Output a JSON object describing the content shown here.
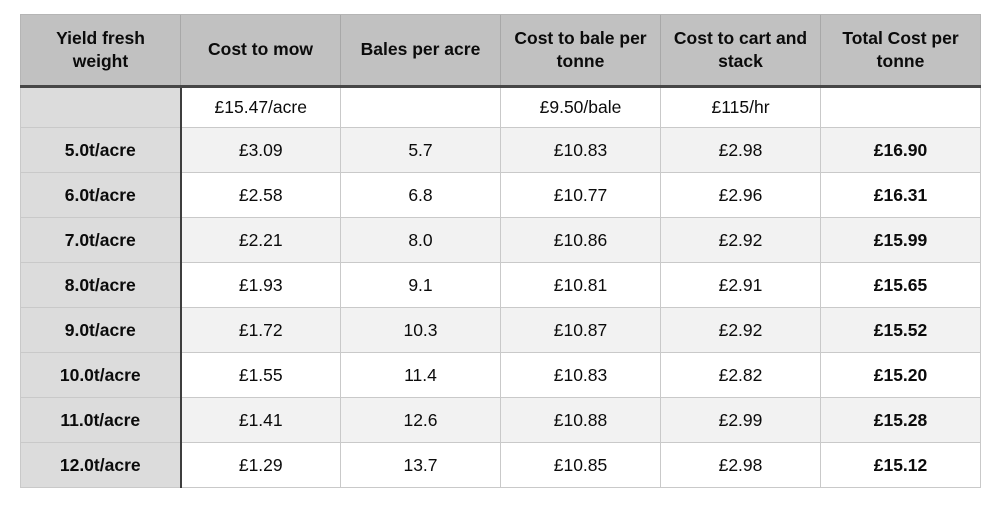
{
  "table": {
    "headers": [
      "Yield fresh weight",
      "Cost to mow",
      "Bales per acre",
      "Cost to bale per tonne",
      "Cost to cart and stack",
      "Total Cost per tonne"
    ],
    "rates": [
      "",
      "£15.47/acre",
      "",
      "£9.50/bale",
      "£115/hr",
      ""
    ],
    "rows": [
      [
        "5.0t/acre",
        "£3.09",
        "5.7",
        "£10.83",
        "£2.98",
        "£16.90"
      ],
      [
        "6.0t/acre",
        "£2.58",
        "6.8",
        "£10.77",
        "£2.96",
        "£16.31"
      ],
      [
        "7.0t/acre",
        "£2.21",
        "8.0",
        "£10.86",
        "£2.92",
        "£15.99"
      ],
      [
        "8.0t/acre",
        "£1.93",
        "9.1",
        "£10.81",
        "£2.91",
        "£15.65"
      ],
      [
        "9.0t/acre",
        "£1.72",
        "10.3",
        "£10.87",
        "£2.92",
        "£15.52"
      ],
      [
        "10.0t/acre",
        "£1.55",
        "11.4",
        "£10.83",
        "£2.82",
        "£15.20"
      ],
      [
        "11.0t/acre",
        "£1.41",
        "12.6",
        "£10.88",
        "£2.99",
        "£15.28"
      ],
      [
        "12.0t/acre",
        "£1.29",
        "13.7",
        "£10.85",
        "£2.98",
        "£15.12"
      ]
    ]
  },
  "chart_data": {
    "type": "table",
    "title": "",
    "columns": [
      "Yield fresh weight",
      "Cost to mow",
      "Bales per acre",
      "Cost to bale per tonne",
      "Cost to cart and stack",
      "Total Cost per tonne"
    ],
    "unit_rates_row": [
      "",
      "£15.47/acre",
      "",
      "£9.50/bale",
      "£115/hr",
      ""
    ],
    "rows": [
      {
        "yield_fresh_weight": "5.0t/acre",
        "cost_to_mow": 3.09,
        "bales_per_acre": 5.7,
        "cost_to_bale_per_tonne": 10.83,
        "cost_to_cart_and_stack": 2.98,
        "total_cost_per_tonne": 16.9
      },
      {
        "yield_fresh_weight": "6.0t/acre",
        "cost_to_mow": 2.58,
        "bales_per_acre": 6.8,
        "cost_to_bale_per_tonne": 10.77,
        "cost_to_cart_and_stack": 2.96,
        "total_cost_per_tonne": 16.31
      },
      {
        "yield_fresh_weight": "7.0t/acre",
        "cost_to_mow": 2.21,
        "bales_per_acre": 8.0,
        "cost_to_bale_per_tonne": 10.86,
        "cost_to_cart_and_stack": 2.92,
        "total_cost_per_tonne": 15.99
      },
      {
        "yield_fresh_weight": "8.0t/acre",
        "cost_to_mow": 1.93,
        "bales_per_acre": 9.1,
        "cost_to_bale_per_tonne": 10.81,
        "cost_to_cart_and_stack": 2.91,
        "total_cost_per_tonne": 15.65
      },
      {
        "yield_fresh_weight": "9.0t/acre",
        "cost_to_mow": 1.72,
        "bales_per_acre": 10.3,
        "cost_to_bale_per_tonne": 10.87,
        "cost_to_cart_and_stack": 2.92,
        "total_cost_per_tonne": 15.52
      },
      {
        "yield_fresh_weight": "10.0t/acre",
        "cost_to_mow": 1.55,
        "bales_per_acre": 11.4,
        "cost_to_bale_per_tonne": 10.83,
        "cost_to_cart_and_stack": 2.82,
        "total_cost_per_tonne": 15.2
      },
      {
        "yield_fresh_weight": "11.0t/acre",
        "cost_to_mow": 1.41,
        "bales_per_acre": 12.6,
        "cost_to_bale_per_tonne": 10.88,
        "cost_to_cart_and_stack": 2.99,
        "total_cost_per_tonne": 15.28
      },
      {
        "yield_fresh_weight": "12.0t/acre",
        "cost_to_mow": 1.29,
        "bales_per_acre": 13.7,
        "cost_to_bale_per_tonne": 10.85,
        "cost_to_cart_and_stack": 2.98,
        "total_cost_per_tonne": 15.12
      }
    ],
    "currency": "GBP"
  }
}
